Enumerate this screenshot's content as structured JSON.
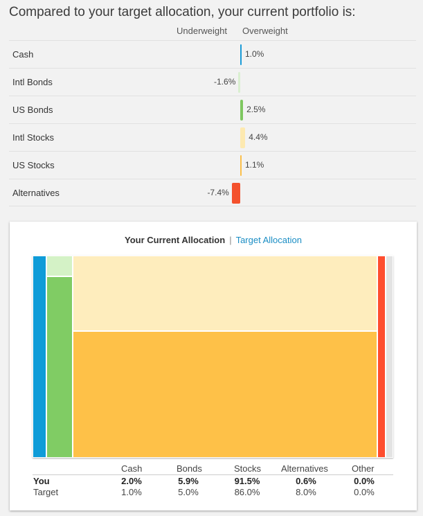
{
  "heading": "Compared to your target allocation, your current portfolio is:",
  "deviation": {
    "underweight_label": "Underweight",
    "overweight_label": "Overweight",
    "rows": [
      {
        "label": "Cash",
        "value": "1.0%",
        "pct": 1.0,
        "color": "#1a9bd7"
      },
      {
        "label": "Intl Bonds",
        "value": "-1.6%",
        "pct": -1.6,
        "color": "#d9efd0"
      },
      {
        "label": "US Bonds",
        "value": "2.5%",
        "pct": 2.5,
        "color": "#7ec760"
      },
      {
        "label": "Intl Stocks",
        "value": "4.4%",
        "pct": 4.4,
        "color": "#fde9b0"
      },
      {
        "label": "US Stocks",
        "value": "1.1%",
        "pct": 1.1,
        "color": "#fbbf4a"
      },
      {
        "label": "Alternatives",
        "value": "-7.4%",
        "pct": -7.4,
        "color": "#f4512c"
      }
    ]
  },
  "allocation": {
    "current_label": "Your Current Allocation",
    "separator": "|",
    "target_label": "Target Allocation",
    "segments": {
      "cash": "#0f9cd8",
      "intl_bonds": "#d4f2c6",
      "us_bonds": "#80cc64",
      "intl_stocks": "#feedbd",
      "us_stocks": "#fec148",
      "alternatives": "#fe4e2f",
      "other": "#e3e3e3"
    },
    "table": {
      "headers": [
        "Cash",
        "Bonds",
        "Stocks",
        "Alternatives",
        "Other"
      ],
      "rows": [
        {
          "label": "You",
          "values": [
            "2.0%",
            "5.9%",
            "91.5%",
            "0.6%",
            "0.0%"
          ]
        },
        {
          "label": "Target",
          "values": [
            "1.0%",
            "5.0%",
            "86.0%",
            "8.0%",
            "0.0%"
          ]
        }
      ]
    }
  }
}
